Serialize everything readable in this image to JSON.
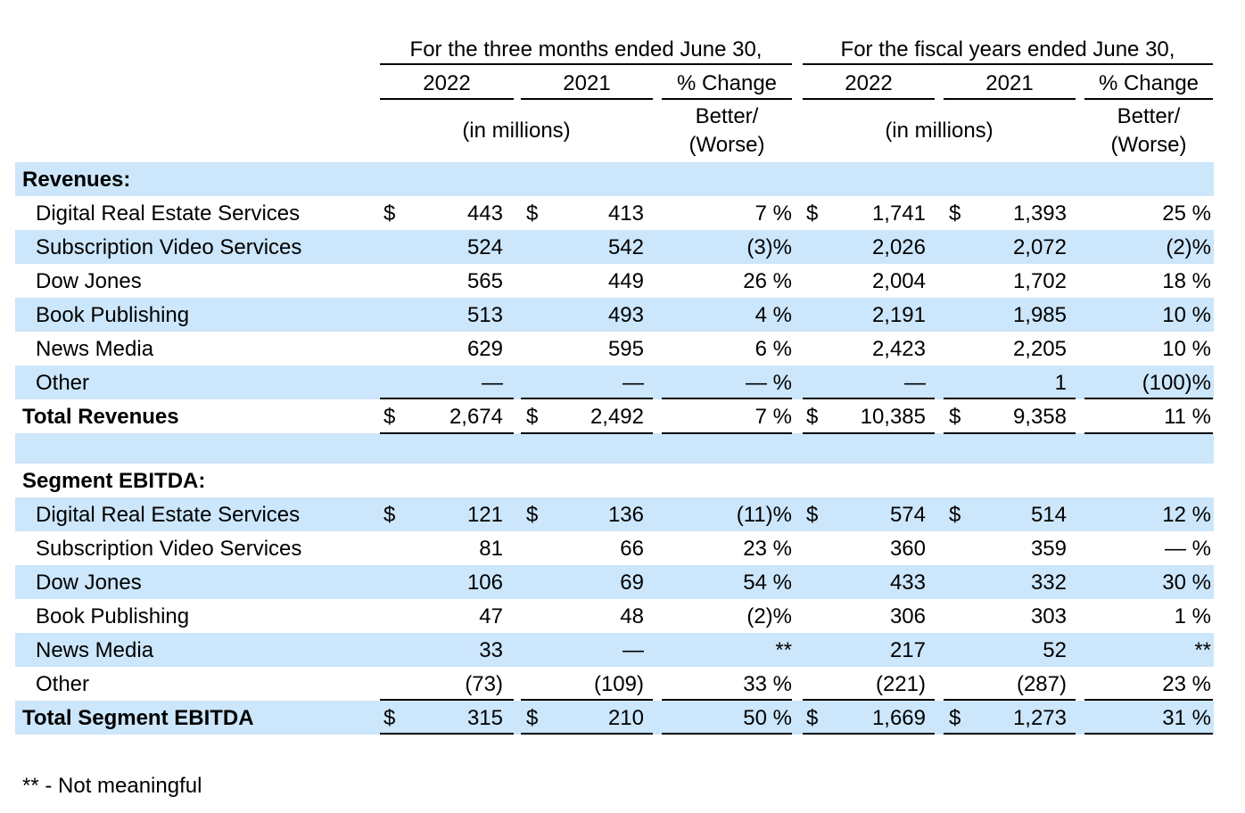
{
  "header": {
    "group_three_months": "For the three months ended June 30,",
    "group_fiscal": "For the fiscal years ended June 30,",
    "year_2022": "2022",
    "year_2021": "2021",
    "pct_change": "% Change",
    "in_millions": "(in millions)",
    "better": "Better/",
    "worse": "(Worse)"
  },
  "revenues": {
    "heading": "Revenues:",
    "rows": [
      {
        "label": "Digital Real Estate Services",
        "d1": "$",
        "q22": "443",
        "d2": "$",
        "q21": "413",
        "qchg": "7 %",
        "d3": "$",
        "f22": "1,741",
        "d4": "$",
        "f21": "1,393",
        "fchg": "25 %"
      },
      {
        "label": "Subscription Video Services",
        "d1": "",
        "q22": "524",
        "d2": "",
        "q21": "542",
        "qchg": "(3)%",
        "d3": "",
        "f22": "2,026",
        "d4": "",
        "f21": "2,072",
        "fchg": "(2)%"
      },
      {
        "label": "Dow Jones",
        "d1": "",
        "q22": "565",
        "d2": "",
        "q21": "449",
        "qchg": "26 %",
        "d3": "",
        "f22": "2,004",
        "d4": "",
        "f21": "1,702",
        "fchg": "18 %"
      },
      {
        "label": "Book Publishing",
        "d1": "",
        "q22": "513",
        "d2": "",
        "q21": "493",
        "qchg": "4 %",
        "d3": "",
        "f22": "2,191",
        "d4": "",
        "f21": "1,985",
        "fchg": "10 %"
      },
      {
        "label": "News Media",
        "d1": "",
        "q22": "629",
        "d2": "",
        "q21": "595",
        "qchg": "6 %",
        "d3": "",
        "f22": "2,423",
        "d4": "",
        "f21": "2,205",
        "fchg": "10 %"
      },
      {
        "label": "Other",
        "d1": "",
        "q22": "—",
        "d2": "",
        "q21": "—",
        "qchg": "— %",
        "d3": "",
        "f22": "—",
        "d4": "",
        "f21": "1",
        "fchg": "(100)%"
      }
    ],
    "total": {
      "label": "Total Revenues",
      "d1": "$",
      "q22": "2,674",
      "d2": "$",
      "q21": "2,492",
      "qchg": "7 %",
      "d3": "$",
      "f22": "10,385",
      "d4": "$",
      "f21": "9,358",
      "fchg": "11 %"
    }
  },
  "ebitda": {
    "heading": "Segment EBITDA:",
    "rows": [
      {
        "label": "Digital Real Estate Services",
        "d1": "$",
        "q22": "121",
        "d2": "$",
        "q21": "136",
        "qchg": "(11)%",
        "d3": "$",
        "f22": "574",
        "d4": "$",
        "f21": "514",
        "fchg": "12 %"
      },
      {
        "label": "Subscription Video Services",
        "d1": "",
        "q22": "81",
        "d2": "",
        "q21": "66",
        "qchg": "23 %",
        "d3": "",
        "f22": "360",
        "d4": "",
        "f21": "359",
        "fchg": "— %"
      },
      {
        "label": "Dow Jones",
        "d1": "",
        "q22": "106",
        "d2": "",
        "q21": "69",
        "qchg": "54 %",
        "d3": "",
        "f22": "433",
        "d4": "",
        "f21": "332",
        "fchg": "30 %"
      },
      {
        "label": "Book Publishing",
        "d1": "",
        "q22": "47",
        "d2": "",
        "q21": "48",
        "qchg": "(2)%",
        "d3": "",
        "f22": "306",
        "d4": "",
        "f21": "303",
        "fchg": "1 %"
      },
      {
        "label": "News Media",
        "d1": "",
        "q22": "33",
        "d2": "",
        "q21": "—",
        "qchg": "**",
        "d3": "",
        "f22": "217",
        "d4": "",
        "f21": "52",
        "fchg": "**"
      },
      {
        "label": "Other",
        "d1": "",
        "q22": "(73)",
        "d2": "",
        "q21": "(109)",
        "qchg": "33 %",
        "d3": "",
        "f22": "(221)",
        "d4": "",
        "f21": "(287)",
        "fchg": "23 %"
      }
    ],
    "total": {
      "label": "Total Segment EBITDA",
      "d1": "$",
      "q22": "315",
      "d2": "$",
      "q21": "210",
      "qchg": "50 %",
      "d3": "$",
      "f22": "1,669",
      "d4": "$",
      "f21": "1,273",
      "fchg": "31 %"
    }
  },
  "footnote": "** - Not meaningful"
}
